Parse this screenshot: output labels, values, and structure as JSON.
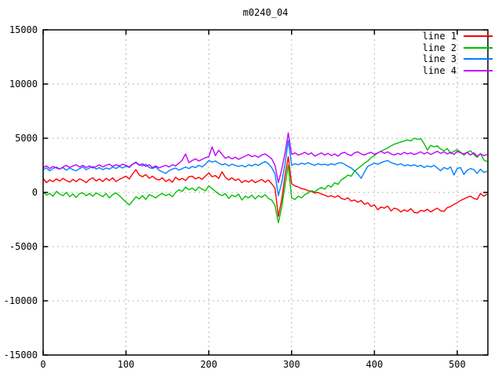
{
  "chart_data": {
    "type": "line",
    "title": "m0240_04",
    "xlabel": "",
    "ylabel": "",
    "xlim": [
      0,
      537
    ],
    "ylim": [
      -15000,
      15000
    ],
    "xticks": [
      0,
      100,
      200,
      300,
      400,
      500
    ],
    "yticks": [
      -15000,
      -10000,
      -5000,
      0,
      5000,
      10000,
      15000
    ],
    "grid": "dashed",
    "legend_position": "top-right-inside",
    "x_start": 0,
    "x_step": 4,
    "series": [
      {
        "name": "line 1",
        "color": "#ff0000",
        "values": [
          1300,
          900,
          1150,
          1000,
          1250,
          1050,
          1300,
          1100,
          950,
          1200,
          1000,
          1250,
          1100,
          900,
          1200,
          1350,
          1050,
          1250,
          1000,
          1300,
          1100,
          1350,
          1000,
          1200,
          1350,
          1500,
          1250,
          1700,
          2100,
          1600,
          1450,
          1650,
          1300,
          1500,
          1250,
          1150,
          1350,
          1000,
          1200,
          950,
          1400,
          1150,
          1300,
          1100,
          1450,
          1500,
          1250,
          1400,
          1200,
          1500,
          1800,
          1450,
          1550,
          1300,
          1900,
          1400,
          1150,
          1350,
          1100,
          1250,
          900,
          1100,
          950,
          1150,
          900,
          1050,
          1200,
          950,
          1150,
          800,
          400,
          -2200,
          -700,
          1500,
          3300,
          800,
          600,
          500,
          350,
          300,
          150,
          100,
          -50,
          0,
          -150,
          -250,
          -400,
          -300,
          -450,
          -300,
          -550,
          -650,
          -500,
          -800,
          -700,
          -900,
          -750,
          -1100,
          -950,
          -1300,
          -1150,
          -1600,
          -1350,
          -1450,
          -1250,
          -1700,
          -1450,
          -1550,
          -1800,
          -1600,
          -1750,
          -1500,
          -1850,
          -1900,
          -1650,
          -1750,
          -1550,
          -1800,
          -1600,
          -1450,
          -1700,
          -1750,
          -1400,
          -1300,
          -1100,
          -950,
          -750,
          -600,
          -450,
          -350,
          -550,
          -650,
          -100,
          -350,
          -150
        ]
      },
      {
        "name": "line 2",
        "color": "#00c000",
        "values": [
          50,
          -250,
          -100,
          -350,
          100,
          -150,
          -300,
          0,
          -400,
          -150,
          -450,
          -100,
          -50,
          -300,
          -100,
          -350,
          -50,
          -200,
          -400,
          -100,
          -500,
          -200,
          -50,
          -300,
          -600,
          -900,
          -1150,
          -800,
          -400,
          -600,
          -300,
          -650,
          -200,
          -350,
          -500,
          -250,
          -100,
          -300,
          -150,
          -400,
          0,
          250,
          100,
          500,
          250,
          400,
          150,
          500,
          300,
          150,
          600,
          350,
          100,
          -150,
          -300,
          -100,
          -550,
          -250,
          -400,
          -150,
          -700,
          -350,
          -500,
          -250,
          -600,
          -300,
          -450,
          -200,
          -550,
          -700,
          -1200,
          -2800,
          -1400,
          600,
          2500,
          -500,
          -650,
          -350,
          -500,
          -200,
          -50,
          150,
          50,
          300,
          450,
          300,
          650,
          500,
          900,
          750,
          1150,
          1350,
          1600,
          1500,
          1950,
          2200,
          2450,
          2700,
          2900,
          3200,
          3400,
          3650,
          3800,
          3950,
          4100,
          4300,
          4450,
          4550,
          4650,
          4750,
          4850,
          4750,
          5000,
          4900,
          4950,
          4500,
          3900,
          4350,
          4200,
          4300,
          4000,
          3850,
          4050,
          3600,
          3800,
          3950,
          3700,
          3450,
          3700,
          3850,
          3500,
          3250,
          3600,
          3000,
          2850
        ]
      },
      {
        "name": "line 3",
        "color": "#0080ff",
        "values": [
          2100,
          2250,
          2000,
          2200,
          2350,
          2150,
          2300,
          2050,
          2250,
          2100,
          2000,
          2200,
          2350,
          2100,
          2250,
          2400,
          2150,
          2300,
          2100,
          2250,
          2150,
          2350,
          2200,
          2400,
          2250,
          2450,
          2300,
          2600,
          2800,
          2550,
          2450,
          2600,
          2300,
          2200,
          2350,
          2050,
          1900,
          1750,
          2000,
          2150,
          2250,
          2050,
          2200,
          2350,
          2200,
          2400,
          2300,
          2500,
          2350,
          2600,
          2950,
          2800,
          2900,
          2700,
          2550,
          2650,
          2450,
          2600,
          2500,
          2400,
          2500,
          2350,
          2550,
          2450,
          2600,
          2500,
          2700,
          2850,
          2650,
          2300,
          1700,
          -300,
          900,
          2600,
          4800,
          2500,
          2650,
          2550,
          2700,
          2600,
          2750,
          2600,
          2500,
          2650,
          2550,
          2600,
          2500,
          2650,
          2550,
          2700,
          2750,
          2600,
          2400,
          2250,
          2000,
          1700,
          1300,
          1900,
          2400,
          2550,
          2700,
          2600,
          2750,
          2850,
          2950,
          2750,
          2650,
          2550,
          2650,
          2450,
          2550,
          2450,
          2550,
          2400,
          2500,
          2300,
          2450,
          2350,
          2500,
          2250,
          2000,
          2300,
          2150,
          2350,
          1600,
          2200,
          2300,
          1650,
          2050,
          2200,
          2100,
          1750,
          2150,
          1850,
          1950
        ]
      },
      {
        "name": "line 4",
        "color": "#c000ff",
        "values": [
          2300,
          2450,
          2200,
          2400,
          2250,
          2150,
          2350,
          2500,
          2300,
          2450,
          2550,
          2350,
          2500,
          2300,
          2450,
          2250,
          2400,
          2550,
          2350,
          2500,
          2600,
          2400,
          2550,
          2450,
          2600,
          2500,
          2350,
          2600,
          2750,
          2500,
          2650,
          2400,
          2550,
          2300,
          2450,
          2250,
          2400,
          2500,
          2350,
          2550,
          2450,
          2700,
          3000,
          3550,
          2750,
          2950,
          3100,
          2900,
          3050,
          3200,
          3300,
          4200,
          3400,
          3900,
          3500,
          3150,
          3300,
          3100,
          3250,
          3050,
          3200,
          3350,
          3500,
          3300,
          3400,
          3250,
          3450,
          3550,
          3350,
          3100,
          2500,
          900,
          2100,
          3600,
          5500,
          3500,
          3650,
          3450,
          3550,
          3700,
          3500,
          3650,
          3350,
          3500,
          3650,
          3450,
          3600,
          3400,
          3550,
          3350,
          3600,
          3700,
          3500,
          3400,
          3650,
          3750,
          3550,
          3450,
          3600,
          3700,
          3500,
          3650,
          3800,
          3600,
          3750,
          3550,
          3450,
          3600,
          3500,
          3700,
          3550,
          3650,
          3500,
          3600,
          3750,
          3550,
          3700,
          3500,
          3650,
          3800,
          3600,
          3750,
          3550,
          3700,
          3500,
          3800,
          3650,
          3550,
          3700,
          3450,
          3650,
          3350,
          3550,
          3400,
          3500
        ]
      }
    ]
  },
  "colors": {
    "background": "#ffffff",
    "border": "#000000",
    "grid": "#b4b4b4",
    "text": "#000000"
  }
}
